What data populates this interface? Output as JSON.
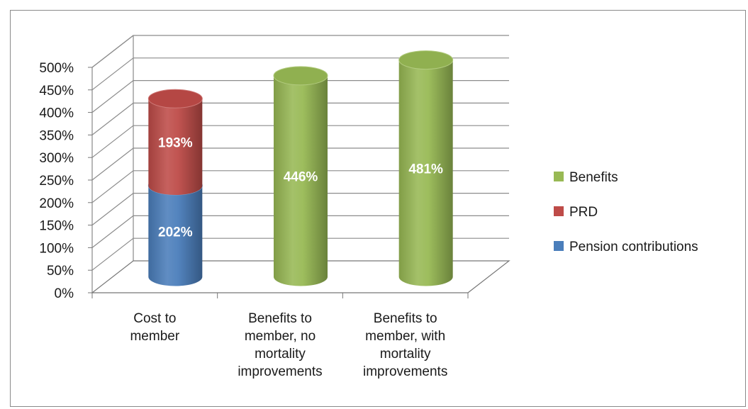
{
  "chart_data": {
    "type": "bar",
    "subtype": "stacked-3d-cylinder",
    "title": "",
    "xlabel": "",
    "ylabel": "",
    "ylim": [
      0,
      500
    ],
    "y_ticks": [
      "0%",
      "50%",
      "100%",
      "150%",
      "200%",
      "250%",
      "300%",
      "350%",
      "400%",
      "450%",
      "500%"
    ],
    "grid": true,
    "legend_position": "right",
    "categories": [
      [
        "Cost to",
        "member"
      ],
      [
        "Benefits to",
        "member, no",
        "mortality",
        "improvements"
      ],
      [
        "Benefits to",
        "member, with",
        "mortality",
        "improvements"
      ]
    ],
    "series": [
      {
        "name": "Pension contributions",
        "color": "#4a7ebb",
        "values": [
          202,
          0,
          0
        ],
        "labels": [
          "202%",
          "",
          ""
        ]
      },
      {
        "name": "PRD",
        "color": "#be4b48",
        "values": [
          193,
          0,
          0
        ],
        "labels": [
          "193%",
          "",
          ""
        ]
      },
      {
        "name": "Benefits",
        "color": "#98b954",
        "values": [
          0,
          446,
          481
        ],
        "labels": [
          "",
          "446%",
          "481%"
        ]
      }
    ],
    "legend_order": [
      2,
      1,
      0
    ]
  }
}
